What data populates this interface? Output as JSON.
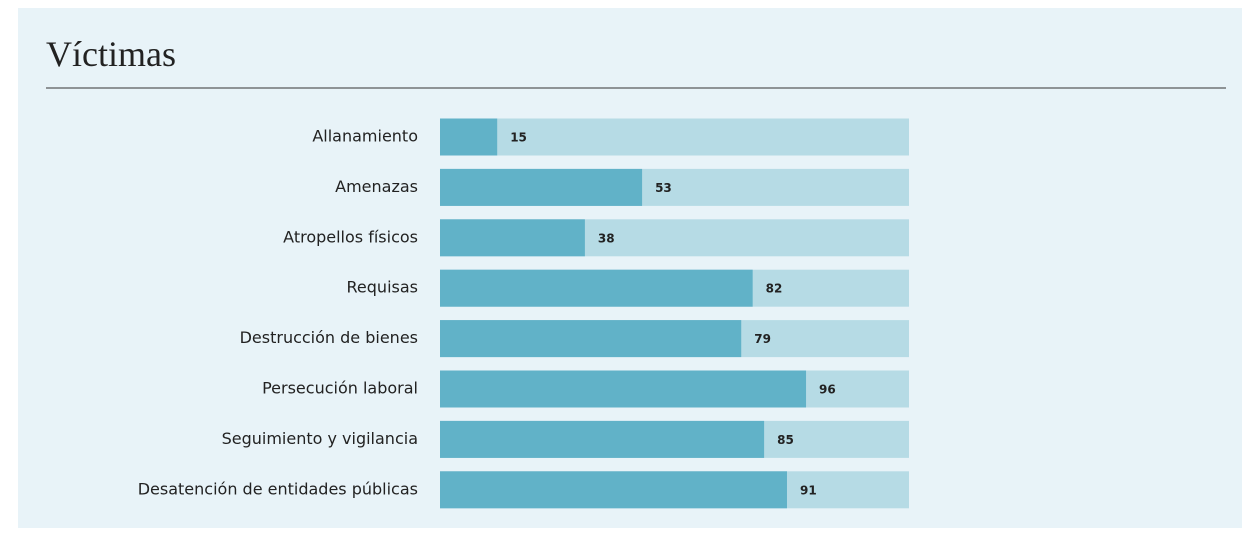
{
  "chart_data": {
    "type": "bar",
    "orientation": "horizontal",
    "title": "Víctimas",
    "categories": [
      "Allanamiento",
      "Amenazas",
      "Atropellos físicos",
      "Requisas",
      "Destrucción de bienes",
      "Persecución laboral",
      "Seguimiento y vigilancia",
      "Desatención de entidades públicas"
    ],
    "values": [
      15,
      53,
      38,
      82,
      79,
      96,
      85,
      91
    ],
    "color": "#61b2c8",
    "track_color": "#b6dbe5",
    "xlim": [
      0,
      123
    ]
  }
}
